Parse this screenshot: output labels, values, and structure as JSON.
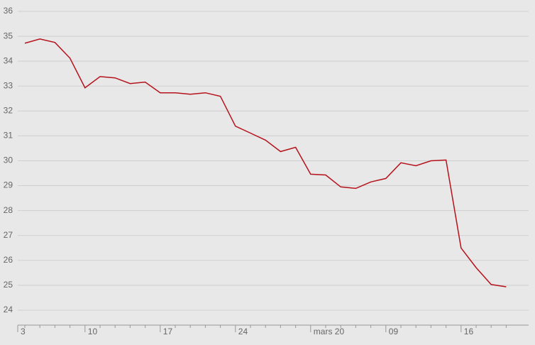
{
  "chart_data": {
    "type": "line",
    "categories": [
      "3",
      null,
      null,
      null,
      null,
      "10",
      null,
      null,
      null,
      null,
      "17",
      null,
      null,
      null,
      null,
      "24",
      null,
      null,
      null,
      null,
      "mars 20",
      null,
      null,
      null,
      null,
      "09",
      null,
      null,
      null,
      null,
      "16",
      null,
      null,
      null
    ],
    "series": [
      {
        "color": "#b5121b",
        "values": [
          null,
          34.72,
          34.89,
          34.75,
          34.12,
          32.93,
          33.38,
          33.33,
          33.1,
          33.16,
          32.73,
          32.73,
          32.67,
          32.73,
          32.59,
          31.39,
          31.11,
          30.83,
          30.37,
          30.54,
          29.46,
          29.43,
          28.95,
          28.89,
          29.15,
          29.29,
          29.92,
          29.8,
          30.0,
          30.03,
          26.5,
          25.71,
          25.03,
          24.94
        ]
      }
    ],
    "ylim": [
      23.4,
      36
    ],
    "yticks": [
      24,
      25,
      26,
      27,
      28,
      29,
      30,
      31,
      32,
      33,
      34,
      35,
      36
    ],
    "grid": true
  }
}
